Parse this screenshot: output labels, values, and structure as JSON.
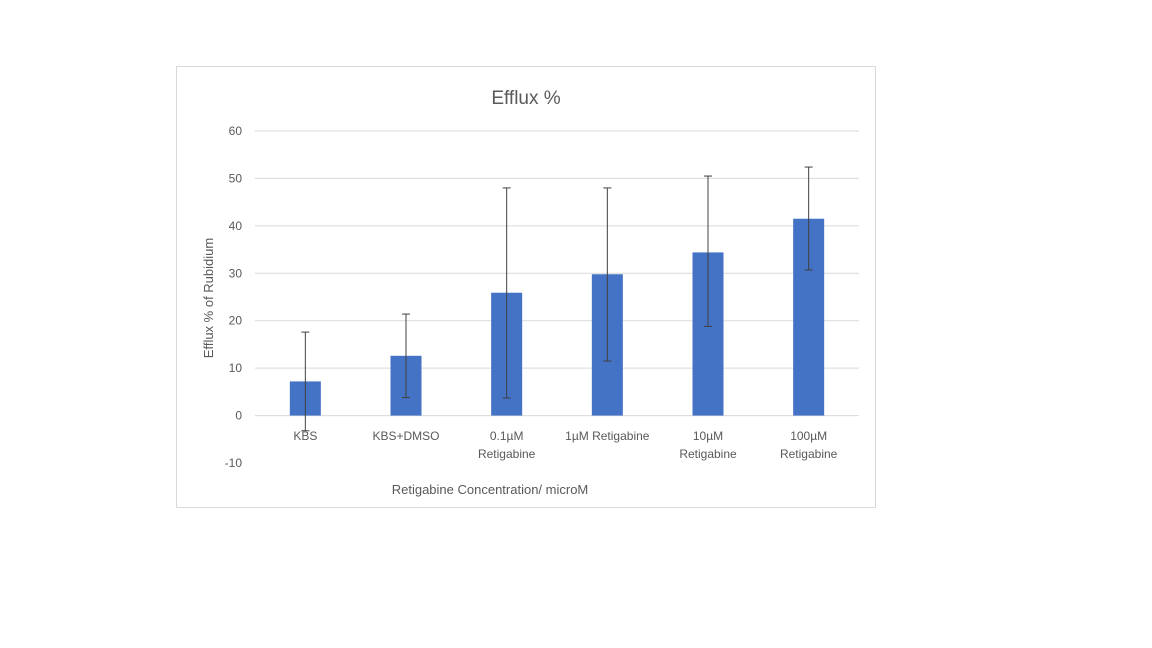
{
  "chart_data": {
    "type": "bar",
    "title": "Efflux %",
    "xlabel": "Retigabine Concentration/ microM",
    "ylabel": "Efflux % of Rubidium",
    "ylim": [
      -10,
      60
    ],
    "yticks": [
      "60",
      "50",
      "40",
      "30",
      "20",
      "10",
      "0",
      "-10"
    ],
    "ytick_values": [
      60,
      50,
      40,
      30,
      20,
      10,
      0,
      -10
    ],
    "grid": true,
    "legend": "none",
    "categories": [
      [
        "KBS"
      ],
      [
        "KBS+DMSO"
      ],
      [
        "0.1µM",
        "Retigabine"
      ],
      [
        "1µM Retigabine"
      ],
      [
        "10µM",
        "Retigabine"
      ],
      [
        "100µM",
        "Retigabine"
      ]
    ],
    "values": [
      7.2,
      12.6,
      25.9,
      29.8,
      34.4,
      41.5
    ],
    "error_upper": [
      17.6,
      21.4,
      48.0,
      48.0,
      50.5,
      52.4
    ],
    "error_lower": [
      -3.2,
      3.8,
      3.7,
      11.5,
      18.8,
      30.7
    ],
    "colors": {
      "bar": "#4472c4",
      "grid": "#d9d9d9",
      "error": "#404040"
    }
  }
}
